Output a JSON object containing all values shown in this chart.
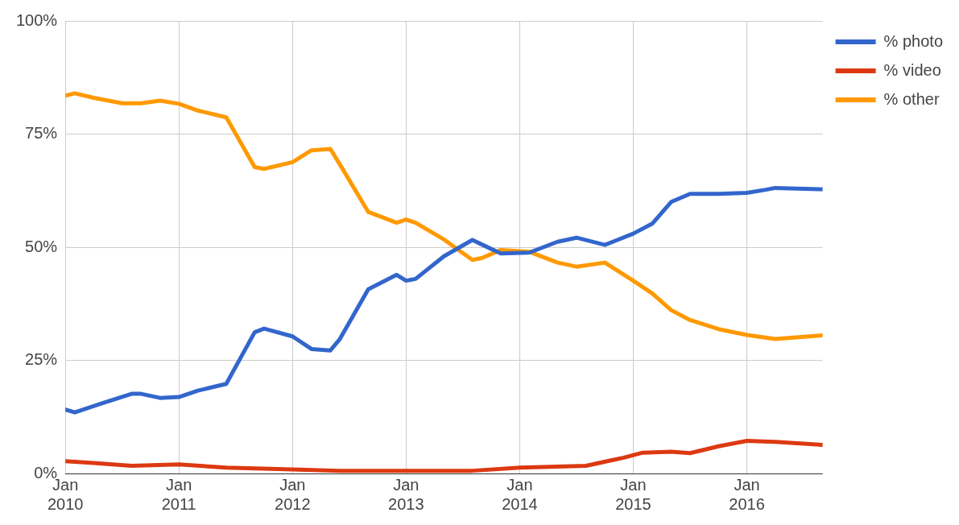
{
  "chart_data": {
    "type": "line",
    "xlim": [
      "2010-01",
      "2016-09"
    ],
    "xticks": [
      {
        "value": "2010-01",
        "label": "Jan 2010"
      },
      {
        "value": "2011-01",
        "label": "Jan 2011"
      },
      {
        "value": "2012-01",
        "label": "Jan 2012"
      },
      {
        "value": "2013-01",
        "label": "Jan 2013"
      },
      {
        "value": "2014-01",
        "label": "Jan 2014"
      },
      {
        "value": "2015-01",
        "label": "Jan 2015"
      },
      {
        "value": "2016-01",
        "label": "Jan 2016"
      }
    ],
    "ylim": [
      0,
      100
    ],
    "yticks": [
      {
        "value": 0,
        "label": "0%"
      },
      {
        "value": 25,
        "label": "25%"
      },
      {
        "value": 50,
        "label": "50%"
      },
      {
        "value": 75,
        "label": "75%"
      },
      {
        "value": 100,
        "label": "100%"
      }
    ],
    "grid": true,
    "legend": "top right",
    "marker": "none",
    "line_style": "solid",
    "series": [
      {
        "name": "% photo",
        "color": "#3366cc",
        "x": [
          "2010-01",
          "2010-02",
          "2010-05",
          "2010-08",
          "2010-09",
          "2010-11",
          "2011-01",
          "2011-03",
          "2011-06",
          "2011-09",
          "2011-10",
          "2012-01",
          "2012-03",
          "2012-05",
          "2012-06",
          "2012-09",
          "2012-12",
          "2013-01",
          "2013-02",
          "2013-05",
          "2013-08",
          "2013-09",
          "2013-11",
          "2014-02",
          "2014-05",
          "2014-07",
          "2014-10",
          "2015-01",
          "2015-03",
          "2015-05",
          "2015-07",
          "2015-10",
          "2016-01",
          "2016-03",
          "2016-04",
          "2016-09"
        ],
        "values": [
          14.1,
          13.5,
          15.6,
          17.6,
          17.6,
          16.7,
          16.9,
          18.3,
          19.8,
          31.2,
          32,
          30.3,
          27.5,
          27.2,
          29.7,
          40.7,
          43.9,
          42.6,
          43,
          48,
          51.6,
          50.6,
          48.6,
          48.8,
          51.2,
          52.1,
          50.5,
          53,
          55.2,
          60,
          61.8,
          61.8,
          62,
          62.7,
          63.1,
          62.8
        ]
      },
      {
        "name": "% video",
        "color": "#dc3912",
        "x": [
          "2010-01",
          "2010-04",
          "2010-08",
          "2011-01",
          "2011-06",
          "2012-01",
          "2012-06",
          "2013-01",
          "2013-08",
          "2014-01",
          "2014-08",
          "2014-12",
          "2015-02",
          "2015-05",
          "2015-07",
          "2015-10",
          "2016-01",
          "2016-04",
          "2016-09"
        ],
        "values": [
          2.7,
          2.3,
          1.7,
          2,
          1.3,
          0.9,
          0.6,
          0.6,
          0.6,
          1.3,
          1.7,
          3.5,
          4.6,
          4.8,
          4.5,
          6,
          7.2,
          7,
          6.3
        ]
      },
      {
        "name": "% other",
        "color": "#ff9900",
        "x": [
          "2010-01",
          "2010-02",
          "2010-04",
          "2010-07",
          "2010-09",
          "2010-11",
          "2011-01",
          "2011-03",
          "2011-06",
          "2011-09",
          "2011-10",
          "2012-01",
          "2012-03",
          "2012-05",
          "2012-06",
          "2012-09",
          "2012-12",
          "2013-01",
          "2013-02",
          "2013-05",
          "2013-08",
          "2013-09",
          "2013-11",
          "2014-02",
          "2014-05",
          "2014-07",
          "2014-10",
          "2015-01",
          "2015-03",
          "2015-05",
          "2015-07",
          "2015-10",
          "2016-01",
          "2016-04",
          "2016-09"
        ],
        "values": [
          83.5,
          84,
          83,
          81.8,
          81.8,
          82.4,
          81.7,
          80.2,
          78.7,
          67.7,
          67.3,
          68.8,
          71.4,
          71.7,
          68.3,
          57.8,
          55.4,
          56.1,
          55.4,
          51.7,
          47.2,
          47.6,
          49.4,
          49,
          46.6,
          45.7,
          46.6,
          42.6,
          39.8,
          36.1,
          33.9,
          31.9,
          30.6,
          29.7,
          30.5
        ]
      }
    ]
  }
}
